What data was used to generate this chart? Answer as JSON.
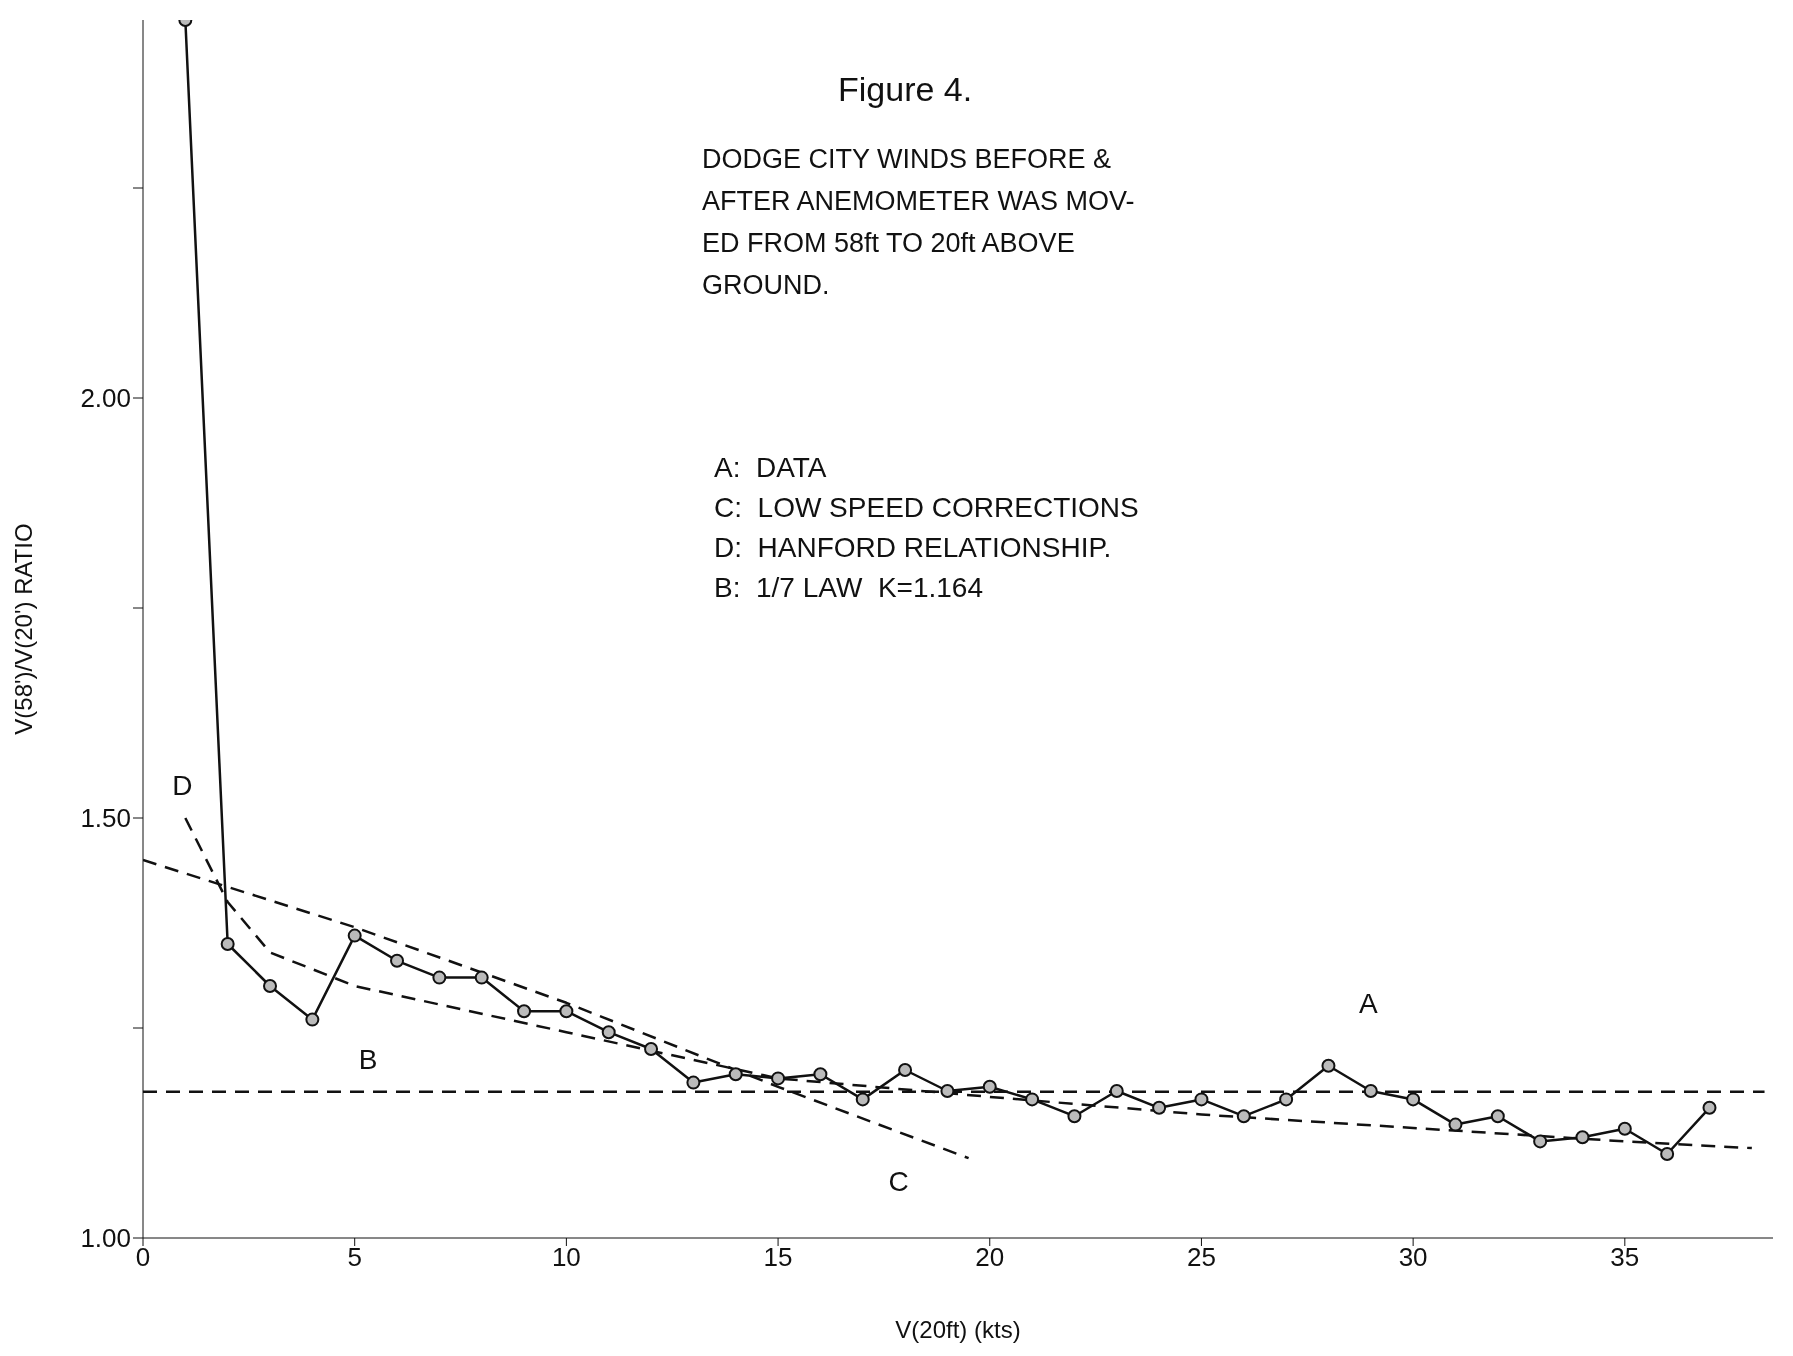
{
  "chart_data": {
    "type": "line",
    "title": "Figure 4.",
    "subtitle": "DODGE CITY WINDS BEFORE &\nAFTER ANEMOMETER WAS MOV-\nED FROM 58ft TO 20ft ABOVE\nGROUND.",
    "xlabel": "V(20ft)  (kts)",
    "ylabel": "V(58')/V(20')  RATIO",
    "xlim": [
      0,
      38.5
    ],
    "xticks": [
      0,
      5,
      10,
      15,
      20,
      25,
      30,
      35
    ],
    "ylim": [
      1,
      2.45
    ],
    "yticks": [
      {
        "value": 1,
        "label": "1.00"
      },
      {
        "value": 1.25,
        "label": null
      },
      {
        "value": 1.5,
        "label": "1.50"
      },
      {
        "value": 1.75,
        "label": null
      },
      {
        "value": 2,
        "label": "2.00"
      },
      {
        "value": 2.25,
        "label": null
      }
    ],
    "series": [
      {
        "name": "A",
        "color": "#111111",
        "marker": "circle",
        "line_style": "solid",
        "x": [
          1,
          2,
          3,
          4,
          5,
          6,
          7,
          8,
          9,
          10,
          11,
          12,
          13,
          14,
          15,
          16,
          17,
          18,
          19,
          20,
          21,
          22,
          23,
          24,
          25,
          26,
          27,
          28,
          29,
          30,
          31,
          32,
          33,
          34,
          35,
          36,
          37
        ],
        "values": [
          2.45,
          1.35,
          1.3,
          1.26,
          1.36,
          1.33,
          1.31,
          1.31,
          1.27,
          1.27,
          1.245,
          1.225,
          1.185,
          1.195,
          1.19,
          1.195,
          1.165,
          1.2,
          1.175,
          1.18,
          1.165,
          1.145,
          1.175,
          1.155,
          1.165,
          1.145,
          1.165,
          1.205,
          1.175,
          1.165,
          1.135,
          1.145,
          1.115,
          1.12,
          1.13,
          1.1,
          1.155
        ]
      },
      {
        "name": "B",
        "color": "#111111",
        "marker": "none",
        "line_style": "dashed",
        "x": [
          0,
          38.3
        ],
        "values": [
          1.174,
          1.174
        ]
      },
      {
        "name": "C",
        "color": "#111111",
        "marker": "none",
        "line_style": "dashed",
        "x": [
          0,
          5,
          10,
          15,
          19.5
        ],
        "values": [
          1.45,
          1.37,
          1.28,
          1.18,
          1.095
        ]
      },
      {
        "name": "D",
        "color": "#111111",
        "marker": "none",
        "line_style": "dashed",
        "x": [
          1,
          2,
          3,
          5,
          10,
          15,
          20,
          25,
          30,
          35,
          38
        ],
        "values": [
          1.5,
          1.4,
          1.34,
          1.3,
          1.245,
          1.19,
          1.168,
          1.147,
          1.131,
          1.115,
          1.107
        ]
      }
    ],
    "annotations": [
      "A:  DATA",
      "C:  LOW SPEED CORRECTIONS",
      "D:  HANFORD RELATIONSHIP.",
      "B:  1/7 LAW  K=1.164"
    ]
  }
}
